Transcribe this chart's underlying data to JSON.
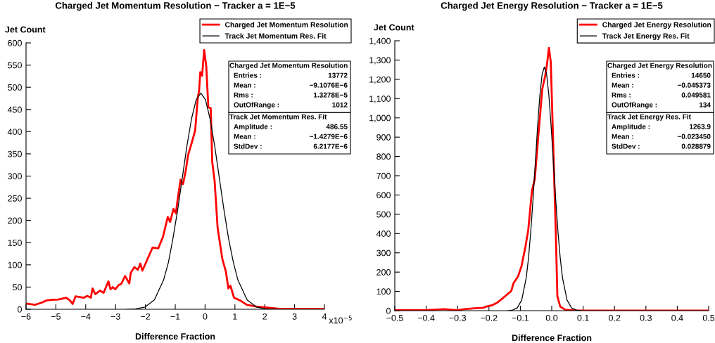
{
  "chart_data": [
    {
      "type": "line",
      "title": "Charged Jet Momentum Resolution − Tracker a = 1E−5",
      "xlabel": "Difference Fraction",
      "ylabel": "Jet Count",
      "legend": "top right",
      "xlim": [
        -6,
        4
      ],
      "xticks": [
        {
          "value": -6,
          "label": "−6"
        },
        {
          "value": -5,
          "label": "−5"
        },
        {
          "value": -4,
          "label": "−4"
        },
        {
          "value": -3,
          "label": "−3"
        },
        {
          "value": -2,
          "label": "−2"
        },
        {
          "value": -1,
          "label": "−1"
        },
        0,
        1,
        2,
        3,
        4
      ],
      "ylim": [
        0,
        600
      ],
      "yticks": [
        0,
        50,
        100,
        150,
        200,
        250,
        300,
        350,
        400,
        450,
        500,
        550,
        600
      ],
      "series": [
        {
          "name": "Charged Jet Momentum Resolution",
          "color": "#ff0000",
          "x": [
            -6,
            -5.7,
            -5.47,
            -5.31,
            -5.16,
            -4.92,
            -4.65,
            -4.53,
            -4.44,
            -4.34,
            -4.06,
            -3.95,
            -3.83,
            -3.77,
            -3.68,
            -3.52,
            -3.4,
            -3.32,
            -3.24,
            -3.17,
            -3.09,
            -3.01,
            -2.89,
            -2.81,
            -2.68,
            -2.54,
            -2.49,
            -2.37,
            -2.25,
            -2.17,
            -2.1,
            -1.76,
            -1.57,
            -1.41,
            -1.25,
            -1.17,
            -1.06,
            -0.98,
            -0.93,
            -0.82,
            -0.74,
            -0.65,
            -0.57,
            -0.43,
            -0.33,
            -0.28,
            -0.24,
            -0.2,
            -0.16,
            -0.1,
            -0.03,
            0.04,
            0.11,
            0.19,
            0.24,
            0.32,
            0.42,
            0.58,
            0.7,
            0.78,
            0.85,
            0.97,
            1.17,
            1.4,
            1.71,
            2.03,
            2.49,
            3.27,
            3.98
          ],
          "values": [
            13,
            10,
            15,
            20,
            21,
            22,
            26,
            20,
            12,
            29,
            26,
            30,
            26,
            47,
            34,
            42,
            37,
            50,
            63,
            45,
            50,
            45,
            55,
            57,
            75,
            58,
            82,
            95,
            89,
            103,
            87,
            139,
            137,
            163,
            208,
            197,
            226,
            216,
            242,
            292,
            282,
            311,
            347,
            379,
            403,
            447,
            479,
            492,
            534,
            526,
            584,
            547,
            455,
            453,
            332,
            289,
            184,
            113,
            84,
            47,
            53,
            26,
            20,
            10,
            6,
            4,
            1,
            1,
            1
          ]
        },
        {
          "name": "Track Jet Momentum Res. Fit",
          "color": "#000000",
          "x": [
            -2.63,
            -2.32,
            -2.01,
            -1.7,
            -1.39,
            -1.23,
            -1.08,
            -0.92,
            -0.765,
            -0.61,
            -0.454,
            -0.298,
            -0.143,
            0.013,
            0.168,
            0.324,
            0.479,
            0.635,
            0.79,
            0.95,
            1.1,
            1.41,
            1.72,
            2.03,
            2.35
          ],
          "values": [
            0,
            1,
            5,
            21,
            66,
            105,
            158,
            223,
            295,
            367,
            429,
            472,
            487,
            472,
            429,
            367,
            295,
            223,
            158,
            105,
            66,
            21,
            5,
            1,
            0
          ]
        }
      ],
      "annotations": [
        "Charged Jet Momentum Resolution",
        "Entries :",
        "13772",
        "Mean :",
        "−9.1076E−6",
        "Rms :",
        "1.3278E−5",
        "OutOfRange :",
        "1012",
        "Track Jet Momentum Res. Fit",
        "Amplitude :",
        "486.55",
        "Mean :",
        "−1.4279E−6",
        "StdDev :",
        "6.2177E−6",
        "x10$^{−5}$"
      ]
    },
    {
      "type": "line",
      "title": "Charged Jet Energy Resolution − Tracker a = 1E−5",
      "xlabel": "Difference Fraction",
      "ylabel": "Jet Count",
      "legend": "top right",
      "xlim": [
        -0.5,
        0.5
      ],
      "xticks": [
        {
          "value": -0.5,
          "label": "−0.5"
        },
        {
          "value": -0.4,
          "label": "−0.4"
        },
        {
          "value": -0.3,
          "label": "−0.3"
        },
        {
          "value": -0.2,
          "label": "−0.2"
        },
        {
          "value": -0.1,
          "label": "−0.1"
        },
        {
          "value": 0,
          "label": "0.0"
        },
        0.1,
        0.2,
        0.3,
        0.4,
        0.5
      ],
      "ylim": [
        0,
        1400
      ],
      "yticks": [
        0,
        100,
        200,
        300,
        400,
        500,
        600,
        700,
        800,
        900,
        {
          "value": 1000,
          "label": "1,000"
        },
        {
          "value": 1100,
          "label": "1,100"
        },
        {
          "value": 1200,
          "label": "1,200"
        },
        {
          "value": 1300,
          "label": "1,300"
        },
        {
          "value": 1400,
          "label": "1,400"
        }
      ],
      "series": [
        {
          "name": "Charged Jet Energy Resolution",
          "color": "#ff0000",
          "x": [
            -0.5,
            -0.406,
            -0.343,
            -0.3,
            -0.279,
            -0.245,
            -0.219,
            -0.204,
            -0.189,
            -0.174,
            -0.155,
            -0.129,
            -0.122,
            -0.107,
            -0.096,
            -0.084,
            -0.075,
            -0.063,
            -0.054,
            -0.043,
            -0.03,
            -0.021,
            -0.015,
            -0.009,
            -0.003,
            0.004,
            0.013,
            0.018,
            0.027,
            0.043,
            0.081,
            0.5
          ],
          "values": [
            2,
            2,
            8,
            2,
            8,
            12,
            15,
            23,
            29,
            41,
            66,
            102,
            142,
            179,
            233,
            330,
            416,
            622,
            683,
            902,
            1151,
            1217,
            1278,
            1363,
            1290,
            902,
            403,
            75,
            21,
            5,
            0,
            0
          ]
        },
        {
          "name": "Track Jet Energy Res. Fit",
          "color": "#000000",
          "x": [
            -0.139,
            -0.1245,
            -0.11,
            -0.0956,
            -0.0812,
            -0.074,
            -0.0668,
            -0.0595,
            -0.0523,
            -0.0451,
            -0.0379,
            -0.0307,
            -0.0235,
            -0.0162,
            -0.009,
            -0.0018,
            0.0054,
            0.0126,
            0.0199,
            0.0271,
            0.0343,
            0.0487,
            0.0632,
            0.0776,
            0.0921
          ],
          "values": [
            0,
            3,
            14,
            55,
            171,
            273,
            410,
            579,
            767,
            954,
            1115,
            1225,
            1264,
            1225,
            1115,
            954,
            767,
            579,
            410,
            273,
            171,
            55,
            14,
            3,
            0
          ]
        }
      ],
      "annotations": [
        "Charged Jet Energy Resolution",
        "Entries :",
        "14650",
        "Mean :",
        "−0.045373",
        "Rms :",
        "0.049581",
        "OutOfRange :",
        "134",
        "Track Jet Energy Res. Fit",
        "Amplitude :",
        "1263.9",
        "Mean :",
        "−0.023450",
        "StdDev :",
        "0.028879"
      ]
    }
  ]
}
